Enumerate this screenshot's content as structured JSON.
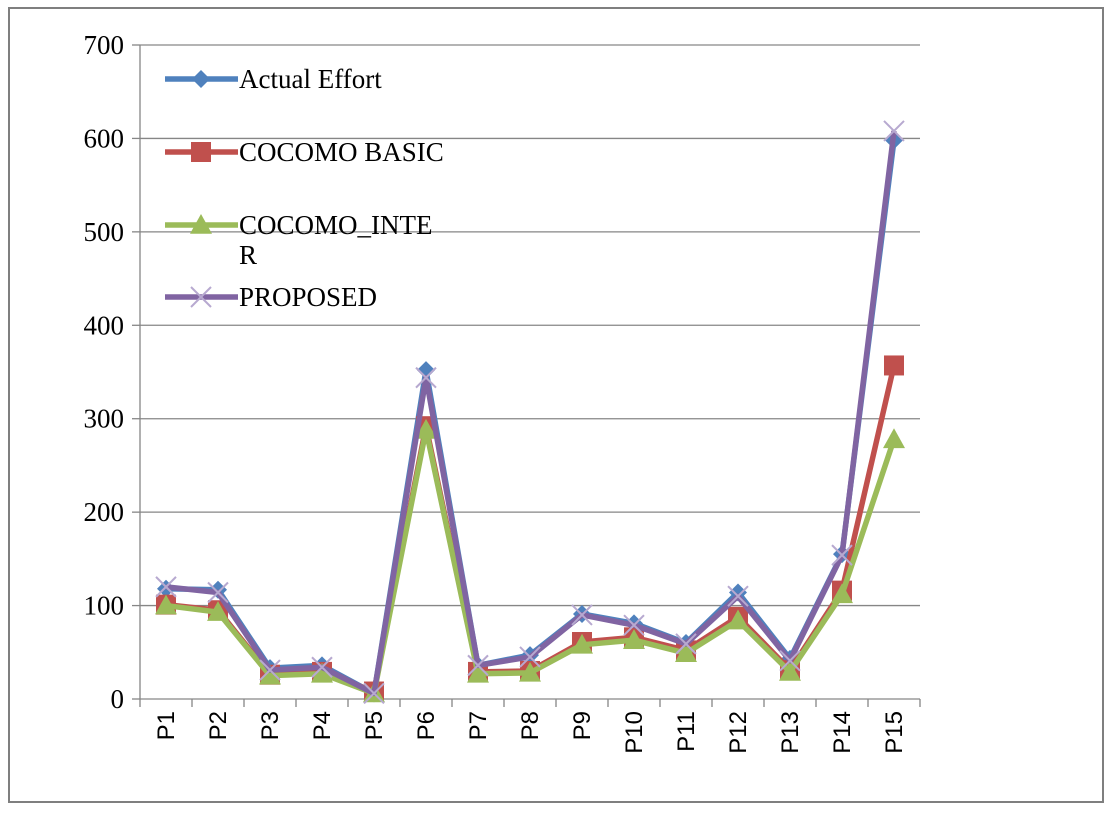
{
  "chart_data": {
    "type": "line",
    "title": "",
    "xlabel": "",
    "ylabel": "",
    "categories": [
      "P1",
      "P2",
      "P3",
      "P4",
      "P5",
      "P6",
      "P7",
      "P8",
      "P9",
      "P10",
      "P11",
      "P12",
      "P13",
      "P14",
      "P15"
    ],
    "ylim": [
      0,
      700
    ],
    "yticks": [
      0,
      100,
      200,
      300,
      400,
      500,
      600,
      700
    ],
    "grid": true,
    "legend_position": "top-left",
    "series": [
      {
        "name": "Actual Effort",
        "color": "#4f81bd",
        "marker": "diamond",
        "values": [
          118,
          117,
          33,
          36,
          6,
          352,
          36,
          47,
          91,
          81,
          60,
          114,
          43,
          155,
          598
        ]
      },
      {
        "name": "COCOMO BASIC",
        "color": "#c0504d",
        "marker": "square",
        "values": [
          101,
          95,
          26,
          29,
          8,
          292,
          29,
          30,
          61,
          66,
          52,
          88,
          31,
          116,
          357
        ]
      },
      {
        "name": "COCOMO_INTE\nR",
        "color": "#9bbb59",
        "marker": "triangle",
        "values": [
          100,
          93,
          25,
          27,
          6,
          288,
          27,
          28,
          58,
          63,
          49,
          84,
          29,
          112,
          278
        ]
      },
      {
        "name": "PROPOSED",
        "color": "#8064a2",
        "marker": "x",
        "values": [
          120,
          114,
          31,
          34,
          6,
          344,
          36,
          45,
          90,
          79,
          59,
          110,
          41,
          154,
          608
        ]
      }
    ]
  }
}
